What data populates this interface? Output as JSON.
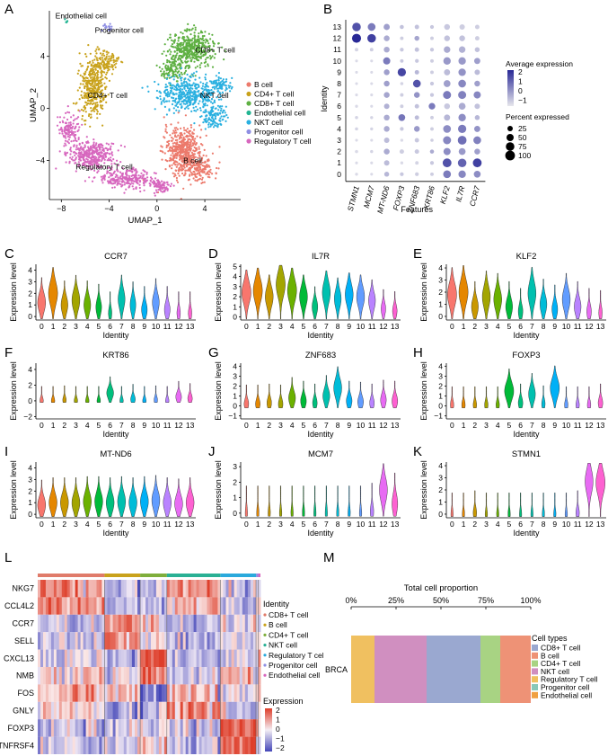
{
  "panel_letters": [
    "A",
    "B",
    "C",
    "D",
    "E",
    "F",
    "G",
    "H",
    "I",
    "J",
    "K",
    "L",
    "M"
  ],
  "chart_data": [
    {
      "panel": "A",
      "type": "scatter",
      "xlabel": "UMAP_1",
      "ylabel": "UMAP_2",
      "x_ticks": [
        -8,
        -4,
        0,
        4
      ],
      "y_ticks": [
        -4,
        0,
        4
      ],
      "xlim": [
        -9,
        7
      ],
      "ylim": [
        -7,
        7.5
      ],
      "legend_position": "right",
      "clusters": [
        {
          "name": "B cell",
          "color": "#ec7a6c",
          "label_at": [
            2.2,
            -4.2
          ]
        },
        {
          "name": "CD4+ T cell",
          "color": "#c9a21c",
          "label_at": [
            -5.8,
            0.8
          ]
        },
        {
          "name": "CD8+ T cell",
          "color": "#5fb043",
          "label_at": [
            3.2,
            4.3
          ]
        },
        {
          "name": "Endothelial cell",
          "color": "#23b593",
          "label_at": [
            -8.5,
            6.9
          ]
        },
        {
          "name": "NKT cell",
          "color": "#2ab0e0",
          "label_at": [
            3.6,
            0.8
          ]
        },
        {
          "name": "Progenitor cell",
          "color": "#8f8fe3",
          "label_at": [
            -5.2,
            5.8
          ]
        },
        {
          "name": "Regulatory T cell",
          "color": "#d767be",
          "label_at": [
            -6.8,
            -4.7
          ]
        }
      ]
    },
    {
      "panel": "B",
      "type": "scatter",
      "subtype": "dot-plot",
      "xlabel": "Features",
      "ylabel": "Identity",
      "features": [
        "STMN1",
        "MCM7",
        "MT-ND6",
        "FOXP3",
        "ZNF683",
        "KRT86",
        "KLF2",
        "IL7R",
        "CCR7"
      ],
      "identities": [
        "0",
        "1",
        "2",
        "3",
        "4",
        "5",
        "6",
        "7",
        "8",
        "9",
        "10",
        "11",
        "12",
        "13"
      ],
      "color_legend_title": "Average expression",
      "color_legend_ticks": [
        "2",
        "1",
        "0",
        "−1"
      ],
      "size_legend_title": "Percent expressed",
      "size_legend_values": [
        "25",
        "50",
        "75",
        "100"
      ],
      "avg_expression": [
        [
          -0.8,
          -0.8,
          -0.2,
          -0.5,
          -0.6,
          -0.6,
          0.8,
          0.6,
          0.5
        ],
        [
          -0.8,
          -0.8,
          -0.3,
          -0.8,
          -0.7,
          -0.5,
          1.5,
          1.2,
          1.8
        ],
        [
          -0.8,
          -0.7,
          0.0,
          -0.6,
          -0.5,
          0.0,
          0.5,
          0.3,
          0.2
        ],
        [
          -0.8,
          -0.8,
          -0.3,
          -0.8,
          -0.5,
          -0.6,
          0.6,
          1.0,
          0.7
        ],
        [
          -0.7,
          -0.7,
          0.0,
          -0.5,
          0.3,
          -0.6,
          0.5,
          0.8,
          0.4
        ],
        [
          -0.7,
          -0.7,
          0.0,
          0.9,
          -0.3,
          -0.6,
          -0.2,
          0.5,
          -0.2
        ],
        [
          -0.8,
          -0.8,
          -0.1,
          -0.6,
          -0.4,
          0.8,
          -0.5,
          0.0,
          -0.4
        ],
        [
          -0.8,
          -0.8,
          0.1,
          -0.6,
          0.4,
          -0.5,
          0.8,
          0.7,
          0.6
        ],
        [
          -0.8,
          -0.8,
          0.2,
          -0.7,
          1.5,
          -0.5,
          0.2,
          0.6,
          0.2
        ],
        [
          -0.8,
          -0.8,
          0.2,
          1.7,
          -0.2,
          -0.6,
          -0.3,
          0.4,
          -0.3
        ],
        [
          -0.8,
          -0.8,
          0.8,
          -0.5,
          -0.5,
          -0.6,
          0.3,
          0.3,
          0.2
        ],
        [
          -0.7,
          -0.6,
          0.0,
          -0.5,
          -0.4,
          -0.5,
          0.0,
          -0.1,
          -0.4
        ],
        [
          2.2,
          1.8,
          0.0,
          -0.6,
          0.1,
          -0.6,
          -0.4,
          -0.4,
          -0.6
        ],
        [
          1.5,
          0.8,
          0.2,
          -0.4,
          -0.4,
          -0.5,
          -0.5,
          -0.6,
          -0.6
        ]
      ],
      "pct_expressed": [
        [
          5,
          4,
          20,
          10,
          10,
          8,
          60,
          55,
          45
        ],
        [
          4,
          4,
          25,
          5,
          8,
          10,
          80,
          75,
          80
        ],
        [
          6,
          5,
          30,
          15,
          15,
          12,
          50,
          45,
          30
        ],
        [
          4,
          4,
          25,
          5,
          15,
          6,
          65,
          80,
          60
        ],
        [
          6,
          5,
          30,
          10,
          30,
          8,
          60,
          70,
          35
        ],
        [
          6,
          5,
          30,
          45,
          15,
          8,
          35,
          55,
          20
        ],
        [
          5,
          4,
          25,
          8,
          15,
          40,
          30,
          45,
          25
        ],
        [
          4,
          4,
          30,
          8,
          30,
          10,
          65,
          65,
          50
        ],
        [
          4,
          4,
          30,
          6,
          60,
          10,
          45,
          60,
          30
        ],
        [
          4,
          4,
          30,
          70,
          15,
          8,
          35,
          55,
          25
        ],
        [
          4,
          4,
          50,
          8,
          10,
          8,
          55,
          55,
          35
        ],
        [
          8,
          8,
          30,
          10,
          15,
          10,
          40,
          40,
          20
        ],
        [
          85,
          75,
          30,
          8,
          20,
          8,
          30,
          30,
          15
        ],
        [
          75,
          60,
          35,
          12,
          15,
          10,
          30,
          25,
          15
        ]
      ]
    },
    {
      "panel": "C-K",
      "type": "area",
      "subtype": "violin",
      "xlabel": "Identity",
      "ylabel": "Expression level",
      "categories": [
        "0",
        "1",
        "2",
        "3",
        "4",
        "5",
        "6",
        "7",
        "8",
        "9",
        "10",
        "11",
        "12",
        "13"
      ],
      "cluster_colors": [
        "#f8766d",
        "#e58700",
        "#c99800",
        "#a3a500",
        "#6bb100",
        "#00ba38",
        "#00bf7d",
        "#00c0af",
        "#00bcd8",
        "#00b0f6",
        "#619cff",
        "#b983ff",
        "#e76bf3",
        "#fd61d1"
      ],
      "panels": [
        {
          "panel": "C",
          "title": "CCR7",
          "y_ticks": [
            "0",
            "1",
            "2",
            "3",
            "4"
          ],
          "ylim": [
            -0.3,
            4.5
          ],
          "medians": [
            1.2,
            2.0,
            1.0,
            1.4,
            1.0,
            0.8,
            0.3,
            1.5,
            1.0,
            0.6,
            1.2,
            0.6,
            0.3,
            0.3
          ],
          "widths": [
            0.7,
            0.8,
            0.6,
            0.7,
            0.6,
            0.5,
            0.3,
            0.6,
            0.5,
            0.5,
            0.6,
            0.5,
            0.3,
            0.3
          ]
        },
        {
          "panel": "D",
          "title": "IL7R",
          "y_ticks": [
            "0",
            "1",
            "2",
            "3",
            "4",
            "5"
          ],
          "ylim": [
            -0.3,
            5.2
          ],
          "medians": [
            2.4,
            2.6,
            2.0,
            3.2,
            2.6,
            2.0,
            1.0,
            2.4,
            1.8,
            2.2,
            2.0,
            1.6,
            0.8,
            0.6
          ],
          "widths": [
            0.8,
            0.8,
            0.7,
            0.8,
            0.8,
            0.7,
            0.5,
            0.7,
            0.6,
            0.7,
            0.7,
            0.6,
            0.4,
            0.4
          ]
        },
        {
          "panel": "E",
          "title": "KLF2",
          "y_ticks": [
            "0",
            "1",
            "2",
            "3",
            "4"
          ],
          "ylim": [
            -0.3,
            4.3
          ],
          "medians": [
            1.8,
            2.0,
            0.8,
            1.6,
            1.4,
            0.8,
            0.4,
            1.9,
            1.0,
            0.6,
            1.4,
            0.8,
            0.4,
            0.3
          ],
          "widths": [
            0.8,
            0.8,
            0.6,
            0.7,
            0.7,
            0.6,
            0.4,
            0.7,
            0.6,
            0.5,
            0.7,
            0.6,
            0.4,
            0.3
          ]
        },
        {
          "panel": "F",
          "title": "KRT86",
          "y_ticks": [
            "−2",
            "0",
            "2",
            "4"
          ],
          "ylim": [
            -2.3,
            4.8
          ],
          "medians": [
            0.0,
            0.0,
            0.1,
            0.0,
            0.0,
            0.0,
            1.0,
            0.0,
            0.2,
            0.0,
            0.1,
            0.0,
            0.5,
            0.3
          ],
          "widths": [
            0.3,
            0.3,
            0.3,
            0.3,
            0.3,
            0.3,
            0.6,
            0.3,
            0.4,
            0.3,
            0.3,
            0.3,
            0.5,
            0.4
          ]
        },
        {
          "panel": "G",
          "title": "ZNF683",
          "y_ticks": [
            "−1",
            "0",
            "1",
            "2",
            "3",
            "4"
          ],
          "ylim": [
            -1.3,
            4.3
          ],
          "medians": [
            0.2,
            0.2,
            0.3,
            0.2,
            0.8,
            0.5,
            0.3,
            1.0,
            1.8,
            0.5,
            0.4,
            0.3,
            0.6,
            0.5
          ],
          "widths": [
            0.4,
            0.4,
            0.4,
            0.4,
            0.6,
            0.5,
            0.4,
            0.6,
            0.7,
            0.5,
            0.5,
            0.4,
            0.5,
            0.5
          ]
        },
        {
          "panel": "H",
          "title": "FOXP3",
          "y_ticks": [
            "−1",
            "0",
            "1",
            "2",
            "3",
            "4"
          ],
          "ylim": [
            -1.3,
            4.3
          ],
          "medians": [
            0.1,
            0.1,
            0.1,
            0.1,
            0.1,
            1.5,
            0.3,
            1.2,
            0.2,
            1.8,
            0.1,
            0.1,
            0.1,
            0.3
          ],
          "widths": [
            0.3,
            0.3,
            0.3,
            0.3,
            0.3,
            0.8,
            0.4,
            0.6,
            0.3,
            0.8,
            0.3,
            0.3,
            0.3,
            0.4
          ]
        },
        {
          "panel": "I",
          "title": "MT-ND6",
          "y_ticks": [
            "0",
            "1",
            "2",
            "3",
            "4"
          ],
          "ylim": [
            -0.3,
            4.5
          ],
          "medians": [
            0.8,
            1.0,
            1.0,
            1.0,
            1.1,
            1.1,
            1.0,
            1.1,
            1.0,
            1.1,
            1.2,
            1.0,
            0.9,
            1.0
          ],
          "widths": [
            0.7,
            0.7,
            0.7,
            0.7,
            0.7,
            0.7,
            0.7,
            0.7,
            0.7,
            0.7,
            0.7,
            0.7,
            0.7,
            0.7
          ]
        },
        {
          "panel": "J",
          "title": "MCM7",
          "y_ticks": [
            "0",
            "1",
            "2",
            "3"
          ],
          "ylim": [
            -0.3,
            3.3
          ],
          "medians": [
            0.0,
            0.0,
            0.0,
            0.0,
            0.0,
            0.0,
            0.0,
            0.0,
            0.0,
            0.0,
            0.0,
            0.1,
            1.5,
            0.6
          ],
          "widths": [
            0.2,
            0.2,
            0.2,
            0.2,
            0.2,
            0.2,
            0.2,
            0.2,
            0.2,
            0.2,
            0.2,
            0.3,
            0.7,
            0.5
          ]
        },
        {
          "panel": "K",
          "title": "STMN1",
          "y_ticks": [
            "0",
            "1",
            "2",
            "3",
            "4"
          ],
          "ylim": [
            -0.3,
            4.3
          ],
          "medians": [
            0.0,
            0.0,
            0.1,
            0.0,
            0.0,
            0.0,
            0.0,
            0.0,
            0.0,
            0.0,
            0.0,
            0.1,
            2.7,
            2.6
          ],
          "widths": [
            0.2,
            0.2,
            0.3,
            0.2,
            0.2,
            0.2,
            0.2,
            0.2,
            0.2,
            0.2,
            0.2,
            0.3,
            0.7,
            0.8
          ]
        }
      ]
    },
    {
      "panel": "L",
      "type": "heatmap",
      "genes": [
        "NKG7",
        "CCL4L2",
        "CCR7",
        "SELL",
        "CXCL13",
        "NMB",
        "FOS",
        "GNLY",
        "FOXP3",
        "TNFRSF4"
      ],
      "legend_title": "Identity",
      "groups": [
        {
          "name": "CD8+ T cell",
          "color": "#e07b6a",
          "fraction": 0.3
        },
        {
          "name": "B cell",
          "color": "#c9a21c",
          "fraction": 0.16
        },
        {
          "name": "CD4+ T cell",
          "color": "#7fae3c",
          "fraction": 0.12
        },
        {
          "name": "NKT cell",
          "color": "#2ab094",
          "fraction": 0.24
        },
        {
          "name": "Regulatory T cell",
          "color": "#2aa9dc",
          "fraction": 0.16
        },
        {
          "name": "Progenitor cell",
          "color": "#8f8fe3",
          "fraction": 0.01
        },
        {
          "name": "Endothelial cell",
          "color": "#d767be",
          "fraction": 0.01
        }
      ],
      "expression_legend_title": "Expression",
      "expression_ticks": [
        "2",
        "1",
        "0",
        "−1",
        "−2"
      ],
      "values": [
        [
          1.2,
          -0.6,
          -0.5,
          1.0,
          -0.4,
          0,
          0
        ],
        [
          1.0,
          -0.5,
          -0.6,
          0.6,
          -0.5,
          0,
          0
        ],
        [
          -0.4,
          1.1,
          0.2,
          -0.6,
          0.1,
          0,
          0
        ],
        [
          -0.5,
          1.0,
          0.1,
          -0.6,
          -0.1,
          0,
          0
        ],
        [
          -0.2,
          -0.5,
          1.8,
          -0.6,
          -0.3,
          0,
          0
        ],
        [
          0.2,
          -0.3,
          1.3,
          -0.4,
          0.4,
          0,
          0
        ],
        [
          0.6,
          0.3,
          -1.0,
          0.5,
          -0.2,
          0,
          0
        ],
        [
          0.3,
          -0.8,
          -0.7,
          0.9,
          -0.3,
          0,
          0
        ],
        [
          -0.5,
          -0.3,
          -0.5,
          -0.5,
          1.7,
          0,
          0
        ],
        [
          -0.5,
          -0.4,
          0.4,
          -0.5,
          1.5,
          0,
          0
        ]
      ]
    },
    {
      "panel": "M",
      "type": "bar",
      "subtype": "stacked-horizontal",
      "title": "Total cell proportion",
      "x_ticks": [
        "0%",
        "25%",
        "50%",
        "75%",
        "100%"
      ],
      "categories": [
        "BRCA"
      ],
      "legend_title": "Cell types",
      "series": [
        {
          "name": "Endothelial cell",
          "color": "#f0c060",
          "values": [
            0.13
          ]
        },
        {
          "name": "Progenitor cell",
          "color": "#d08fc0",
          "values": [
            0.29
          ]
        },
        {
          "name": "CD8+ T cell",
          "color": "#9aa8d0",
          "values": [
            0.3
          ]
        },
        {
          "name": "CD4+ T cell",
          "color": "#a8d383",
          "values": [
            0.11
          ]
        },
        {
          "name": "B cell",
          "color": "#ee9276",
          "values": [
            0.17
          ]
        }
      ],
      "legend_order": [
        "CD8+ T cell",
        "B cell",
        "CD4+ T cell",
        "NKT cell",
        "Regulatory T cell",
        "Progenitor cell",
        "Endothelial cell"
      ],
      "legend_colors": [
        "#9aa8d0",
        "#ee9276",
        "#a8d383",
        "#d08fc0",
        "#f0c060",
        "#88c8b8",
        "#f0a040"
      ]
    }
  ]
}
